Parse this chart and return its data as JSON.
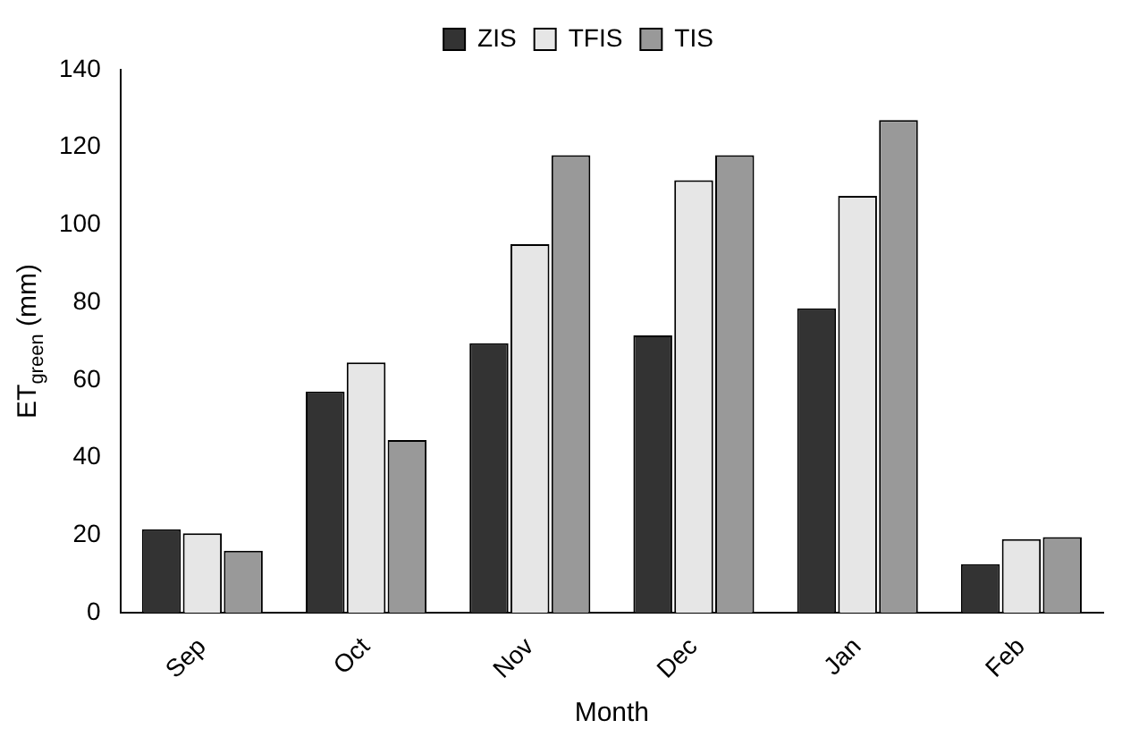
{
  "chart_data": {
    "type": "bar",
    "xlabel": "Month",
    "ylabel": "ET$_{green}$ (mm)",
    "categories": [
      "Sep",
      "Oct",
      "Nov",
      "Dec",
      "Jan",
      "Feb"
    ],
    "series": [
      {
        "name": "ZIS",
        "color": "#333333",
        "values": [
          21.5,
          57,
          69.5,
          71.5,
          78.5,
          12.5
        ]
      },
      {
        "name": "TFIS",
        "color": "#e6e6e6",
        "values": [
          20.5,
          64.5,
          95,
          111.5,
          107.5,
          19
        ]
      },
      {
        "name": "TIS",
        "color": "#999999",
        "values": [
          16,
          44.5,
          118,
          118,
          127,
          19.5
        ]
      }
    ],
    "ylim": [
      0,
      140
    ],
    "yticks": [
      0,
      20,
      40,
      60,
      80,
      100,
      120,
      140
    ],
    "grid": false,
    "legend": "top"
  }
}
